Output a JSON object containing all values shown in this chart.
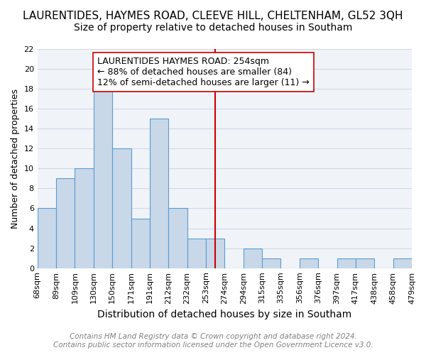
{
  "title": "LAURENTIDES, HAYMES ROAD, CLEEVE HILL, CHELTENHAM, GL52 3QH",
  "subtitle": "Size of property relative to detached houses in Southam",
  "xlabel": "Distribution of detached houses by size in Southam",
  "ylabel": "Number of detached properties",
  "bar_color": "#c8d8e8",
  "bar_edge_color": "#5b9bd5",
  "grid_color": "#d0d8e8",
  "background_color": "#f0f4f8",
  "bin_edges": [
    "68sqm",
    "89sqm",
    "109sqm",
    "130sqm",
    "150sqm",
    "171sqm",
    "191sqm",
    "212sqm",
    "232sqm",
    "253sqm",
    "274sqm",
    "294sqm",
    "315sqm",
    "335sqm",
    "356sqm",
    "376sqm",
    "397sqm",
    "417sqm",
    "438sqm",
    "458sqm",
    "479sqm"
  ],
  "values": [
    6,
    9,
    10,
    18,
    12,
    5,
    15,
    6,
    3,
    3,
    0,
    2,
    1,
    0,
    1,
    0,
    1,
    1,
    0,
    1
  ],
  "vline_x": 9.5,
  "vline_color": "#cc0000",
  "annotation_title": "LAURENTIDES HAYMES ROAD: 254sqm",
  "annotation_line1": "← 88% of detached houses are smaller (84)",
  "annotation_line2": "12% of semi-detached houses are larger (11) →",
  "annotation_box_color": "#ffffff",
  "annotation_box_edge": "#cc0000",
  "ylim": [
    0,
    22
  ],
  "yticks": [
    0,
    2,
    4,
    6,
    8,
    10,
    12,
    14,
    16,
    18,
    20,
    22
  ],
  "footer_line1": "Contains HM Land Registry data © Crown copyright and database right 2024.",
  "footer_line2": "Contains public sector information licensed under the Open Government Licence v3.0.",
  "title_fontsize": 11,
  "subtitle_fontsize": 10,
  "xlabel_fontsize": 10,
  "ylabel_fontsize": 9,
  "tick_fontsize": 8,
  "footer_fontsize": 7.5,
  "annotation_fontsize": 9
}
